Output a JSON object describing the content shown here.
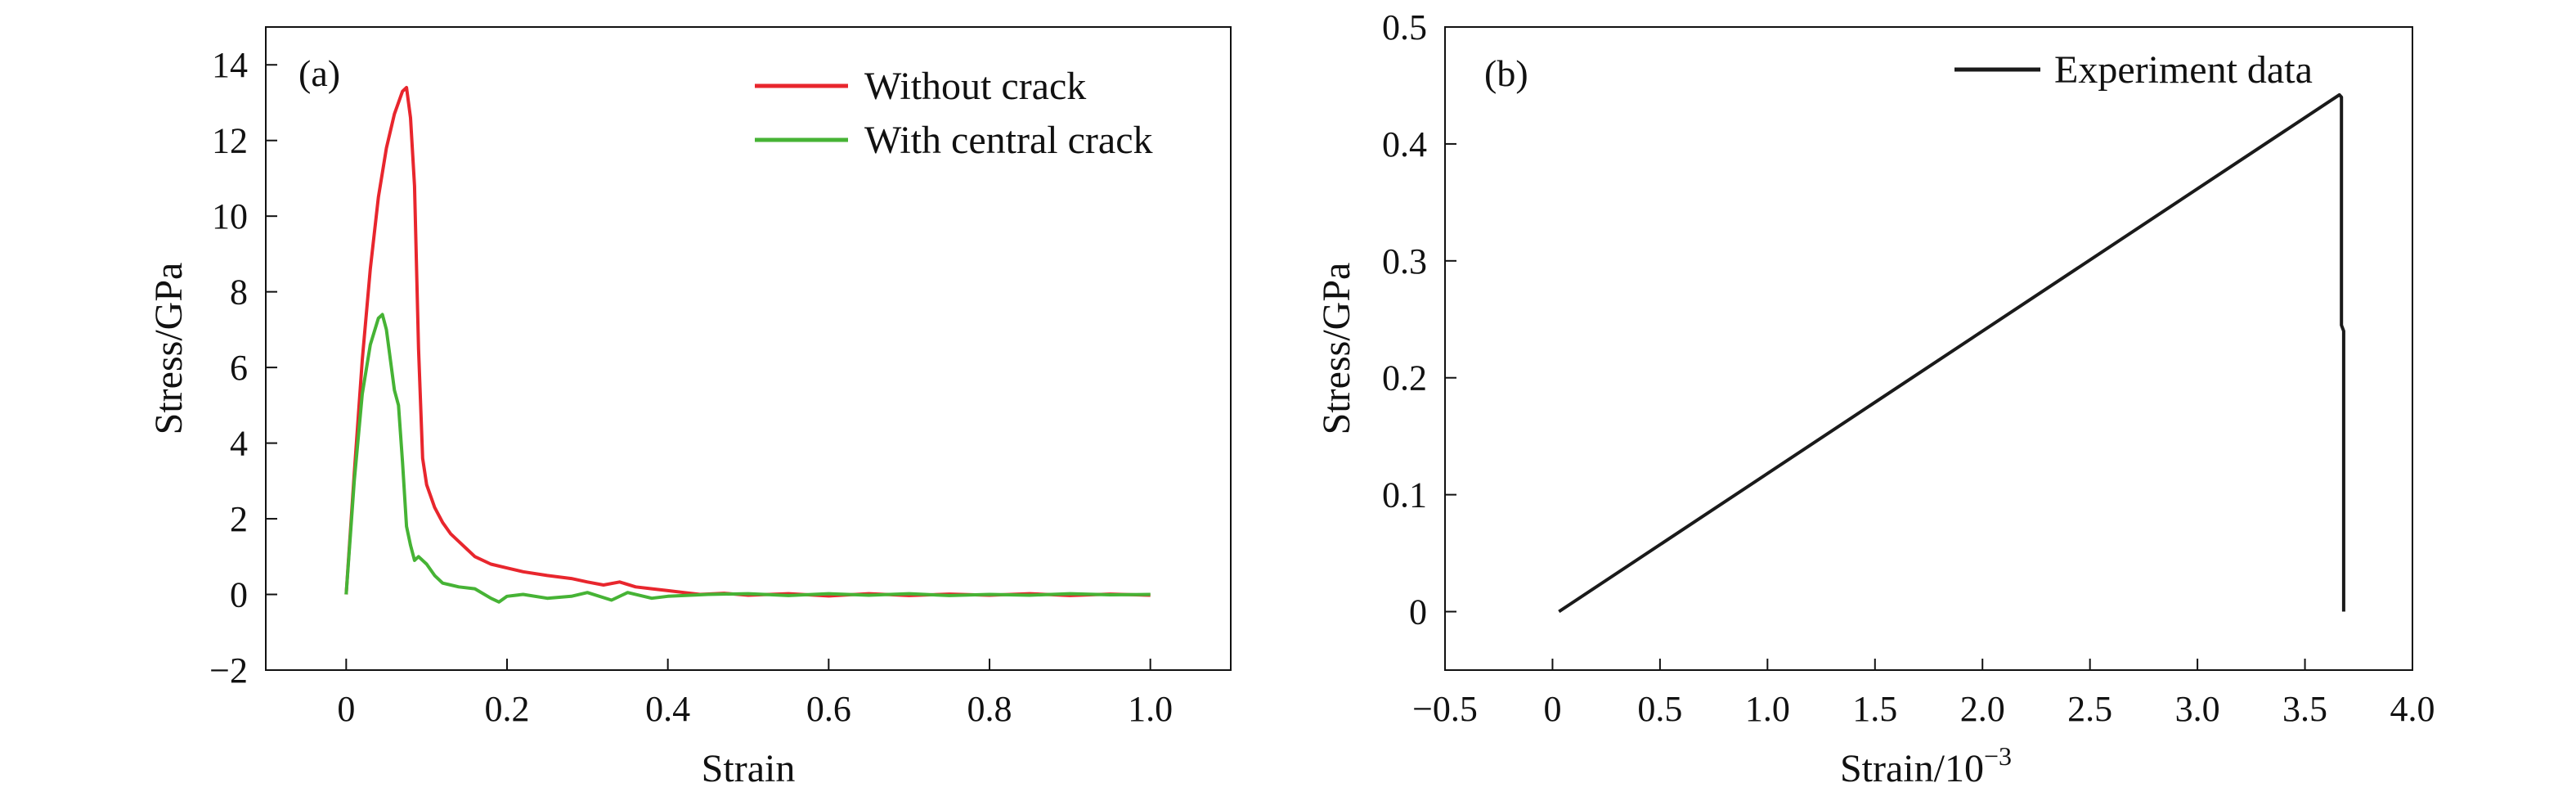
{
  "chart_data": [
    {
      "type": "line",
      "panel_label": "(a)",
      "xlabel": "Strain",
      "ylabel": "Stress/GPa",
      "xlim": [
        -0.1,
        1.1
      ],
      "ylim": [
        -2,
        15
      ],
      "xticks": [
        0,
        0.2,
        0.4,
        0.6,
        0.8,
        1.0
      ],
      "xtick_labels": [
        "0",
        "0.2",
        "0.4",
        "0.6",
        "0.8",
        "1.0"
      ],
      "yticks": [
        -2,
        0,
        2,
        4,
        6,
        8,
        10,
        12,
        14
      ],
      "ytick_labels": [
        "−2",
        "0",
        "2",
        "4",
        "6",
        "8",
        "10",
        "12",
        "14"
      ],
      "grid": false,
      "legend_position": "top-right",
      "series": [
        {
          "name": "Without crack",
          "color": "#e8262d",
          "x": [
            0,
            0.01,
            0.02,
            0.03,
            0.04,
            0.05,
            0.06,
            0.07,
            0.075,
            0.08,
            0.085,
            0.09,
            0.095,
            0.1,
            0.11,
            0.12,
            0.13,
            0.14,
            0.15,
            0.16,
            0.18,
            0.2,
            0.22,
            0.25,
            0.28,
            0.3,
            0.32,
            0.34,
            0.36,
            0.38,
            0.4,
            0.42,
            0.44,
            0.47,
            0.5,
            0.55,
            0.6,
            0.65,
            0.7,
            0.75,
            0.8,
            0.85,
            0.9,
            0.95,
            1.0
          ],
          "y": [
            0,
            3.2,
            6.2,
            8.6,
            10.5,
            11.8,
            12.7,
            13.3,
            13.4,
            12.6,
            10.8,
            6.5,
            3.6,
            2.9,
            2.3,
            1.9,
            1.6,
            1.4,
            1.2,
            1.0,
            0.8,
            0.7,
            0.6,
            0.5,
            0.42,
            0.33,
            0.25,
            0.33,
            0.2,
            0.15,
            0.1,
            0.05,
            0.0,
            0.03,
            -0.02,
            0.02,
            -0.04,
            0.02,
            -0.03,
            0.01,
            -0.02,
            0.02,
            -0.03,
            0.01,
            -0.02
          ]
        },
        {
          "name": "With central crack",
          "color": "#46b335",
          "x": [
            0,
            0.01,
            0.02,
            0.03,
            0.04,
            0.045,
            0.05,
            0.055,
            0.06,
            0.065,
            0.07,
            0.075,
            0.08,
            0.085,
            0.09,
            0.1,
            0.11,
            0.12,
            0.13,
            0.14,
            0.16,
            0.18,
            0.19,
            0.2,
            0.22,
            0.25,
            0.28,
            0.3,
            0.33,
            0.35,
            0.38,
            0.4,
            0.45,
            0.5,
            0.55,
            0.6,
            0.65,
            0.7,
            0.75,
            0.8,
            0.85,
            0.9,
            0.95,
            1.0
          ],
          "y": [
            0,
            3.0,
            5.3,
            6.6,
            7.3,
            7.4,
            7.0,
            6.2,
            5.4,
            5.0,
            3.5,
            1.8,
            1.3,
            0.9,
            1.0,
            0.8,
            0.5,
            0.3,
            0.25,
            0.2,
            0.15,
            -0.1,
            -0.2,
            -0.05,
            0.0,
            -0.1,
            -0.05,
            0.05,
            -0.15,
            0.05,
            -0.1,
            -0.05,
            0.0,
            0.02,
            -0.03,
            0.02,
            -0.02,
            0.02,
            -0.03,
            0.0,
            -0.02,
            0.02,
            -0.01,
            0.0
          ]
        }
      ]
    },
    {
      "type": "line",
      "panel_label": "(b)",
      "xlabel": "Strain/10",
      "xlabel_superscript": "−3",
      "ylabel": "Stress/GPa",
      "xlim": [
        -0.5,
        4.0
      ],
      "ylim": [
        -0.05,
        0.5
      ],
      "xticks": [
        -0.5,
        0,
        0.5,
        1.0,
        1.5,
        2.0,
        2.5,
        3.0,
        3.5,
        4.0
      ],
      "xtick_labels": [
        "−0.5",
        "0",
        "0.5",
        "1.0",
        "1.5",
        "2.0",
        "2.5",
        "3.0",
        "3.5",
        "4.0"
      ],
      "yticks": [
        0,
        0.1,
        0.2,
        0.3,
        0.4,
        0.5
      ],
      "ytick_labels": [
        "0",
        "0.1",
        "0.2",
        "0.3",
        "0.4",
        "0.5"
      ],
      "grid": false,
      "legend_position": "top-right",
      "series": [
        {
          "name": "Experiment data",
          "color": "#1a1a1a",
          "x": [
            0.03,
            3.66,
            3.67,
            3.67,
            3.68,
            3.68
          ],
          "y": [
            0.0,
            0.442,
            0.44,
            0.245,
            0.24,
            0.0
          ]
        }
      ]
    }
  ]
}
